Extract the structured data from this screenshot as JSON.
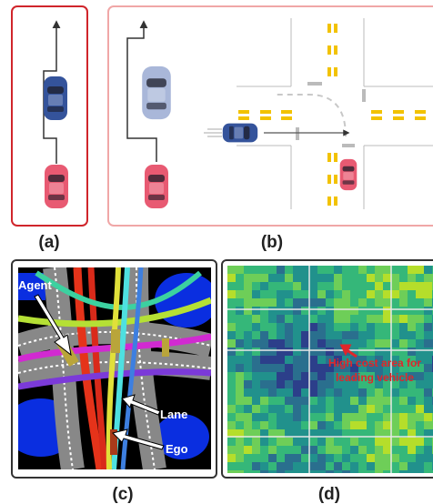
{
  "labels": {
    "a": "(a)",
    "b": "(b)",
    "c": "(c)",
    "d": "(d)"
  },
  "panel_c": {
    "agent": "Agent",
    "lane": "Lane",
    "ego": "Ego"
  },
  "panel_d": {
    "annotation_line1": "High cost area for",
    "annotation_line2": "leading vehicle"
  }
}
